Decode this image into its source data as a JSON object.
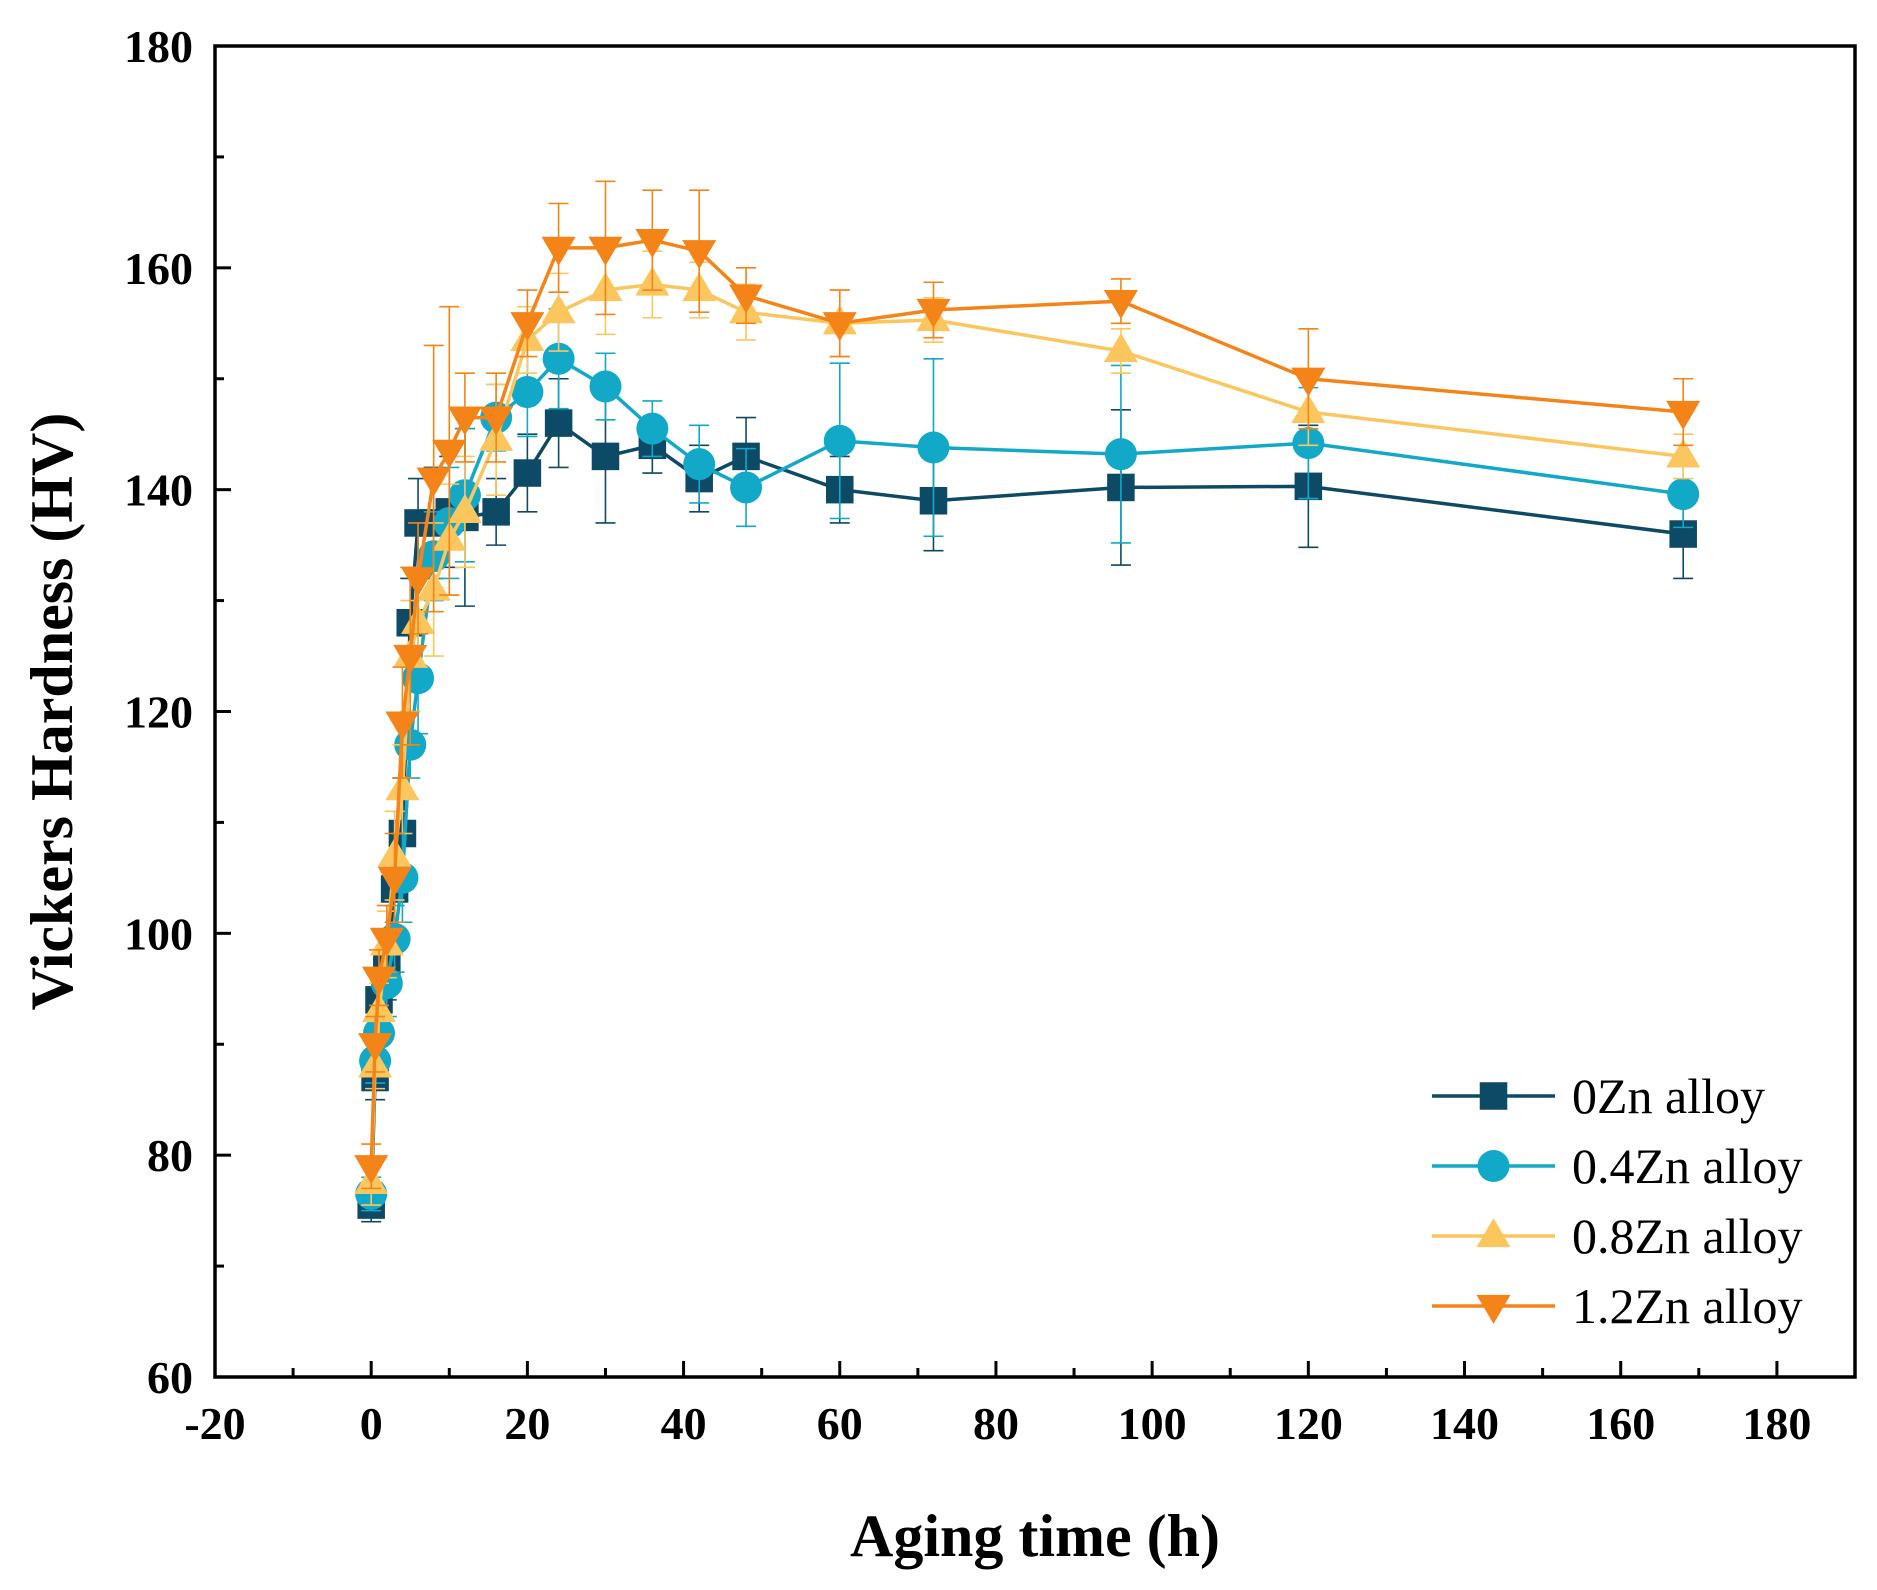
{
  "chart_data": {
    "type": "line",
    "xlabel": "Aging time (h)",
    "ylabel": "Vickers Hardness (HV)",
    "xlim": [
      -20,
      190
    ],
    "ylim": [
      60,
      180
    ],
    "xticks": [
      -20,
      0,
      20,
      40,
      60,
      80,
      100,
      120,
      140,
      160,
      180
    ],
    "yticks": [
      60,
      80,
      100,
      120,
      140,
      160,
      180
    ],
    "grid": false,
    "legend_position": "bottom-right",
    "series": [
      {
        "name": "0Zn alloy",
        "color": "#0d4a66",
        "marker": "square",
        "x": [
          0,
          0.5,
          1,
          2,
          3,
          4,
          5,
          6,
          8,
          10,
          12,
          16,
          20,
          24,
          30,
          36,
          42,
          48,
          60,
          72,
          96,
          120,
          168
        ],
        "y": [
          75.5,
          87,
          94,
          97,
          104,
          109,
          128,
          137,
          137,
          138,
          137.5,
          138,
          141.5,
          146,
          143,
          144,
          141,
          143,
          140,
          139,
          140.2,
          140.3,
          136
        ],
        "err": [
          1.5,
          2,
          2,
          3,
          3,
          5,
          4,
          4,
          5,
          5,
          8,
          3,
          3.5,
          4,
          6,
          2.5,
          3,
          3.5,
          3,
          4.5,
          7,
          5.5,
          4
        ]
      },
      {
        "name": "0.4Zn alloy",
        "color": "#12a8c8",
        "marker": "circle",
        "x": [
          0,
          0.5,
          1,
          2,
          3,
          4,
          5,
          6,
          8,
          10,
          12,
          16,
          20,
          24,
          30,
          36,
          42,
          48,
          60,
          72,
          96,
          120,
          168
        ],
        "y": [
          76.5,
          88.5,
          91,
          95.5,
          99.5,
          105,
          117,
          123,
          134,
          137,
          139.5,
          146.5,
          148.8,
          151.8,
          149.3,
          145.5,
          142.3,
          140.2,
          144.4,
          143.8,
          143.2,
          144.2,
          139.6
        ],
        "err": [
          1.5,
          2,
          2,
          3,
          3,
          4,
          3,
          5,
          4,
          5,
          6,
          3,
          4,
          4.5,
          3,
          2.5,
          3.5,
          3.5,
          7,
          8,
          8,
          5,
          3
        ]
      },
      {
        "name": "0.8Zn alloy",
        "color": "#fcc65e",
        "marker": "triangle-up",
        "x": [
          0,
          0.5,
          1,
          2,
          3,
          4,
          5,
          6,
          8,
          10,
          12,
          16,
          20,
          24,
          30,
          36,
          42,
          48,
          60,
          72,
          96,
          120,
          168
        ],
        "y": [
          77.5,
          88,
          93,
          99,
          107,
          113,
          125,
          128,
          131,
          135.5,
          138,
          144.5,
          153.5,
          156,
          158,
          158.5,
          158,
          156,
          155,
          155.3,
          152.5,
          147,
          143
        ],
        "err": [
          2,
          2,
          2.5,
          3,
          4,
          4,
          5,
          4,
          6,
          5,
          5,
          5,
          3,
          3.5,
          4,
          3,
          2.5,
          2.5,
          3,
          2,
          2,
          3,
          2
        ]
      },
      {
        "name": "1.2Zn alloy",
        "color": "#f58418",
        "marker": "triangle-down",
        "x": [
          0,
          0.5,
          1,
          2,
          3,
          4,
          5,
          6,
          8,
          10,
          12,
          16,
          20,
          24,
          30,
          36,
          42,
          48,
          60,
          72,
          96,
          120,
          168
        ],
        "y": [
          79,
          90,
          96,
          99.5,
          105,
          119,
          125,
          132,
          141,
          143.5,
          146.5,
          146.5,
          155,
          161.8,
          161.8,
          162.5,
          161.5,
          157.5,
          155,
          156.2,
          157,
          150,
          147
        ],
        "err": [
          2,
          2.5,
          2.5,
          3,
          4,
          5,
          8,
          5,
          12,
          13,
          4,
          4,
          3,
          4,
          6,
          4.5,
          5.5,
          2.5,
          3,
          2.5,
          2,
          4.5,
          3
        ]
      }
    ]
  }
}
